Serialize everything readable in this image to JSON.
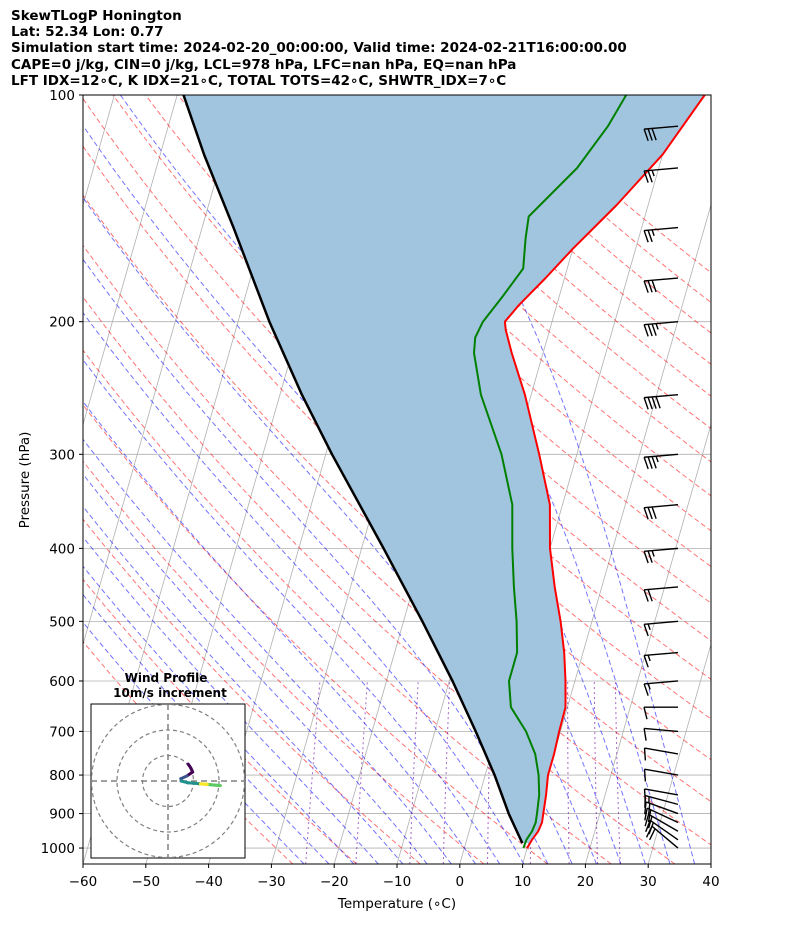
{
  "header": {
    "line1": "SkewTLogP Honington",
    "line2": "Lat: 52.34   Lon: 0.77",
    "line3": "Simulation start time: 2024-02-20_00:00:00, Valid time: 2024-02-21T16:00:00.00",
    "line4": "CAPE=0 j/kg, CIN=0 j/kg, LCL=978 hPa, LFC=nan hPa, EQ=nan hPa",
    "line5": "LFT IDX=12∘C, K IDX=21∘C, TOTAL TOTS=42∘C, SHWTR_IDX=7∘C"
  },
  "chart_data": {
    "type": "line",
    "xlabel": "Temperature (∘C)",
    "ylabel": "Pressure (hPa)",
    "xlim": [
      -60,
      40
    ],
    "ylim": [
      1050,
      100
    ],
    "y_scale": "log",
    "x_ticks": [
      -60,
      -50,
      -40,
      -30,
      -20,
      -10,
      0,
      10,
      20,
      30,
      40
    ],
    "x_tick_labels": [
      "−60",
      "−50",
      "−40",
      "−30",
      "−20",
      "−10",
      "0",
      "10",
      "20",
      "30",
      "40"
    ],
    "y_ticks": [
      1000,
      900,
      800,
      700,
      600,
      500,
      400,
      300,
      200,
      100
    ],
    "y_tick_labels": [
      "1000",
      "900",
      "800",
      "700",
      "600",
      "500",
      "400",
      "300",
      "200",
      "100"
    ],
    "grid": true,
    "series": [
      {
        "role": "temperature",
        "color": "#ff0000",
        "points": [
          [
            1000,
            10.0
          ],
          [
            975,
            10.4
          ],
          [
            950,
            11.0
          ],
          [
            925,
            11.2
          ],
          [
            900,
            11.0
          ],
          [
            850,
            10.6
          ],
          [
            800,
            10.0
          ],
          [
            750,
            10.0
          ],
          [
            700,
            9.8
          ],
          [
            650,
            9.7
          ],
          [
            600,
            8.5
          ],
          [
            550,
            7.0
          ],
          [
            500,
            5.0
          ],
          [
            450,
            2.5
          ],
          [
            400,
            0.0
          ],
          [
            350,
            -2.0
          ],
          [
            300,
            -6.0
          ],
          [
            250,
            -11.0
          ],
          [
            220,
            -15.0
          ],
          [
            205,
            -17.0
          ],
          [
            200,
            -17.5
          ],
          [
            190,
            -16.0
          ],
          [
            175,
            -13.0
          ],
          [
            160,
            -10.0
          ],
          [
            140,
            -5.0
          ],
          [
            120,
            0.0
          ],
          [
            100,
            4.0
          ]
        ]
      },
      {
        "role": "dewpoint",
        "color": "#008000",
        "points": [
          [
            1000,
            9.4
          ],
          [
            975,
            9.5
          ],
          [
            950,
            10.0
          ],
          [
            925,
            10.2
          ],
          [
            900,
            10.0
          ],
          [
            850,
            9.5
          ],
          [
            800,
            8.5
          ],
          [
            750,
            7.0
          ],
          [
            700,
            4.5
          ],
          [
            650,
            1.0
          ],
          [
            600,
            -0.5
          ],
          [
            550,
            -0.5
          ],
          [
            500,
            -2.0
          ],
          [
            450,
            -4.0
          ],
          [
            400,
            -6.0
          ],
          [
            350,
            -8.0
          ],
          [
            300,
            -12.0
          ],
          [
            250,
            -18.0
          ],
          [
            220,
            -21.0
          ],
          [
            210,
            -21.5
          ],
          [
            200,
            -21.0
          ],
          [
            185,
            -19.0
          ],
          [
            170,
            -17.0
          ],
          [
            155,
            -18.0
          ],
          [
            145,
            -18.5
          ],
          [
            125,
            -13.0
          ],
          [
            110,
            -10.0
          ],
          [
            100,
            -8.5
          ]
        ]
      },
      {
        "role": "parcel",
        "color": "#000000",
        "points": [
          [
            985,
            9.0
          ],
          [
            900,
            5.5
          ],
          [
            800,
            1.5
          ],
          [
            700,
            -3.5
          ],
          [
            600,
            -9.5
          ],
          [
            500,
            -17.0
          ],
          [
            400,
            -26.5
          ],
          [
            300,
            -39.0
          ],
          [
            250,
            -46.5
          ],
          [
            200,
            -55.0
          ],
          [
            150,
            -65.0
          ],
          [
            120,
            -73.0
          ],
          [
            100,
            -79.0
          ]
        ]
      }
    ],
    "shaded_region": {
      "between": [
        "temperature",
        "parcel"
      ],
      "color": "#a2c5df"
    },
    "wind_barbs": {
      "levels": [
        1000,
        975,
        950,
        925,
        900,
        875,
        850,
        800,
        750,
        700,
        650,
        600,
        550,
        500,
        450,
        400,
        350,
        300,
        250,
        200,
        175,
        150,
        125,
        110
      ],
      "speeds_kt": [
        20,
        20,
        20,
        20,
        20,
        15,
        10,
        10,
        10,
        10,
        10,
        15,
        15,
        15,
        20,
        25,
        30,
        35,
        40,
        35,
        30,
        25,
        25,
        30
      ],
      "directions_deg": [
        230,
        235,
        240,
        245,
        250,
        255,
        260,
        260,
        260,
        265,
        270,
        275,
        275,
        275,
        275,
        275,
        275,
        275,
        275,
        275,
        275,
        275,
        275,
        275
      ]
    },
    "inset": {
      "title_line1": "Wind Profile",
      "title_line2": "10m/s increment",
      "rings": [
        10,
        20,
        30
      ],
      "colormap": [
        "#440154",
        "#3b528b",
        "#21918c",
        "#5ec962",
        "#fde725"
      ]
    }
  }
}
